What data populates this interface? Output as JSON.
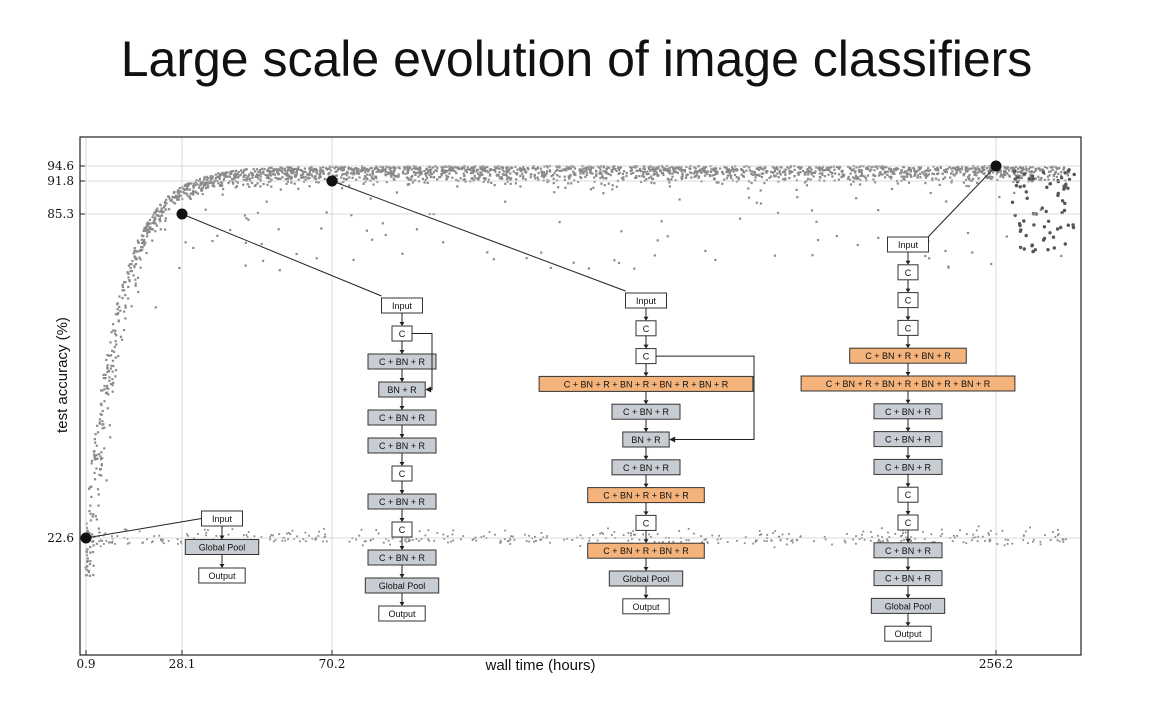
{
  "page": {
    "title": "Large scale evolution of image classifiers"
  },
  "chart_data": {
    "type": "scatter",
    "xlabel": "wall time (hours)",
    "ylabel": "test accuracy (%)",
    "xticks": [
      "0.9",
      "28.1",
      "70.2",
      "256.2"
    ],
    "yticks": [
      "22.6",
      "85.3",
      "91.8",
      "94.6"
    ],
    "grid": true,
    "colors": {
      "points": "#8a8a8a",
      "markers": "#111111",
      "gray_block": "#c8ccd3",
      "orange_block": "#f3b37a",
      "white_block": "#ffffff"
    },
    "highlights": [
      {
        "x": 0.9,
        "y": 22.6
      },
      {
        "x": 28.1,
        "y": 85.3
      },
      {
        "x": 70.2,
        "y": 91.8
      },
      {
        "x": 256.2,
        "y": 94.6
      }
    ],
    "architectures": [
      {
        "highlight": 0,
        "blocks": [
          {
            "label": "Input",
            "style": "white"
          },
          {
            "label": "Global Pool",
            "style": "gray"
          },
          {
            "label": "Output",
            "style": "white"
          }
        ]
      },
      {
        "highlight": 1,
        "skip": {
          "from": 1,
          "to": 3
        },
        "blocks": [
          {
            "label": "Input",
            "style": "white"
          },
          {
            "label": "C",
            "style": "white"
          },
          {
            "label": "C + BN + R",
            "style": "gray"
          },
          {
            "label": "BN + R",
            "style": "gray"
          },
          {
            "label": "C + BN + R",
            "style": "gray"
          },
          {
            "label": "C + BN + R",
            "style": "gray"
          },
          {
            "label": "C",
            "style": "white"
          },
          {
            "label": "C + BN + R",
            "style": "gray"
          },
          {
            "label": "C",
            "style": "white"
          },
          {
            "label": "C + BN + R",
            "style": "gray"
          },
          {
            "label": "Global Pool",
            "style": "gray"
          },
          {
            "label": "Output",
            "style": "white"
          }
        ]
      },
      {
        "highlight": 2,
        "skip": {
          "from": 2,
          "to": 5
        },
        "blocks": [
          {
            "label": "Input",
            "style": "white"
          },
          {
            "label": "C",
            "style": "white"
          },
          {
            "label": "C",
            "style": "white"
          },
          {
            "label": "C + BN + R + BN + R + BN + R + BN + R",
            "style": "orange"
          },
          {
            "label": "C + BN + R",
            "style": "gray"
          },
          {
            "label": "BN + R",
            "style": "gray"
          },
          {
            "label": "C + BN + R",
            "style": "gray"
          },
          {
            "label": "C + BN + R + BN + R",
            "style": "orange"
          },
          {
            "label": "C",
            "style": "white"
          },
          {
            "label": "C + BN + R + BN + R",
            "style": "orange"
          },
          {
            "label": "Global Pool",
            "style": "gray"
          },
          {
            "label": "Output",
            "style": "white"
          }
        ]
      },
      {
        "highlight": 3,
        "blocks": [
          {
            "label": "Input",
            "style": "white"
          },
          {
            "label": "C",
            "style": "white"
          },
          {
            "label": "C",
            "style": "white"
          },
          {
            "label": "C",
            "style": "white"
          },
          {
            "label": "C + BN + R + BN + R",
            "style": "orange"
          },
          {
            "label": "C + BN + R + BN + R + BN + R + BN + R",
            "style": "orange"
          },
          {
            "label": "C + BN + R",
            "style": "gray"
          },
          {
            "label": "C + BN + R",
            "style": "gray"
          },
          {
            "label": "C + BN + R",
            "style": "gray"
          },
          {
            "label": "C",
            "style": "white"
          },
          {
            "label": "C",
            "style": "white"
          },
          {
            "label": "C + BN + R",
            "style": "gray"
          },
          {
            "label": "C + BN + R",
            "style": "gray"
          },
          {
            "label": "Global Pool",
            "style": "gray"
          },
          {
            "label": "Output",
            "style": "white"
          }
        ]
      }
    ]
  }
}
